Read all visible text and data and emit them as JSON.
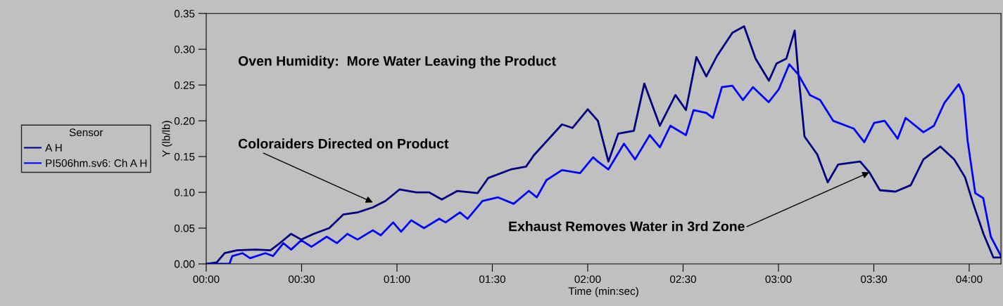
{
  "chart_data": {
    "type": "line",
    "xlabel": "Time (min:sec)",
    "ylabel": "Y (lb/lb)",
    "legend_title": "Sensor",
    "legend": "left",
    "grid": false,
    "marker": "none",
    "line_style": "solid",
    "annotations": [
      "Oven Humidity:  More Water Leaving the Product",
      {
        "text": "Coloraiders Directed on Product",
        "x": 52.4,
        "y": 0.086
      },
      {
        "text": "Exhaust Removes Water in 3rd Zone",
        "x": 208.6,
        "y": 0.128
      }
    ],
    "xlim": [
      0,
      250
    ],
    "xticks": [
      {
        "value": 0,
        "label": "00:00"
      },
      {
        "value": 30,
        "label": "00:30"
      },
      {
        "value": 60,
        "label": "01:00"
      },
      {
        "value": 90,
        "label": "01:30"
      },
      {
        "value": 120,
        "label": "02:00"
      },
      {
        "value": 150,
        "label": "02:30"
      },
      {
        "value": 180,
        "label": "03:00"
      },
      {
        "value": 210,
        "label": "03:30"
      },
      {
        "value": 240,
        "label": "04:00"
      }
    ],
    "ylim": [
      0,
      0.35
    ],
    "yticks": [
      {
        "value": 0,
        "label": "0.00"
      },
      {
        "value": 0.05,
        "label": "0.05"
      },
      {
        "value": 0.1,
        "label": "0.10"
      },
      {
        "value": 0.15,
        "label": "0.15"
      },
      {
        "value": 0.2,
        "label": "0.20"
      },
      {
        "value": 0.25,
        "label": "0.25"
      },
      {
        "value": 0.3,
        "label": "0.30"
      },
      {
        "value": 0.35,
        "label": "0.35"
      }
    ],
    "series": [
      {
        "name": "A H",
        "color": "#000080",
        "x": [
          0,
          3.3,
          5.8,
          9.7,
          15.5,
          20.2,
          22.6,
          26.7,
          29.9,
          33.8,
          38.7,
          43.1,
          47.6,
          52.4,
          56.4,
          60.8,
          66.1,
          70.1,
          74.1,
          79,
          85.4,
          88.7,
          95.8,
          100.6,
          103.1,
          111.9,
          115.2,
          120,
          123.2,
          126.5,
          129.6,
          134.5,
          137.8,
          142.7,
          147.6,
          150.9,
          154.2,
          157.3,
          160.6,
          165.5,
          169.2,
          172.8,
          177,
          179.4,
          182.5,
          185.1,
          186.2,
          188.2,
          192.2,
          195.5,
          198.8,
          205.7,
          208.6,
          211.9,
          216.8,
          221.6,
          225.6,
          230.9,
          235.3,
          238.7,
          241.2,
          244.5,
          247.6,
          250
        ],
        "values": [
          0,
          0.002,
          0.015,
          0.019,
          0.02,
          0.019,
          0.027,
          0.042,
          0.034,
          0.042,
          0.05,
          0.069,
          0.072,
          0.079,
          0.088,
          0.104,
          0.1,
          0.1,
          0.09,
          0.102,
          0.099,
          0.12,
          0.132,
          0.136,
          0.152,
          0.195,
          0.19,
          0.216,
          0.2,
          0.143,
          0.182,
          0.186,
          0.252,
          0.193,
          0.236,
          0.215,
          0.289,
          0.262,
          0.29,
          0.323,
          0.332,
          0.287,
          0.256,
          0.28,
          0.287,
          0.326,
          0.269,
          0.178,
          0.153,
          0.114,
          0.139,
          0.143,
          0.128,
          0.103,
          0.101,
          0.11,
          0.146,
          0.164,
          0.146,
          0.121,
          0.085,
          0.042,
          0.009,
          0.009
        ]
      },
      {
        "name": "PI506hm.sv6: Ch A H",
        "color": "#0000ff",
        "x": [
          0,
          7.3,
          8.2,
          11.4,
          13.8,
          18.6,
          21,
          24.3,
          26.7,
          29.9,
          33.1,
          37.9,
          41.1,
          44.4,
          47.6,
          52.4,
          54.9,
          58.8,
          61.3,
          64.5,
          68.5,
          73.3,
          75.3,
          79.8,
          82.2,
          86.9,
          91.8,
          96.7,
          101.5,
          104,
          107,
          111.9,
          117.6,
          121.7,
          123.2,
          126.5,
          131.4,
          134.9,
          139.5,
          142.7,
          146,
          150.9,
          153.3,
          157.3,
          159.4,
          162.2,
          165.5,
          168.8,
          172,
          176.9,
          180.1,
          183.4,
          186.2,
          189.9,
          193.1,
          197.2,
          203.7,
          207,
          210.1,
          213.4,
          217.5,
          220,
          225.6,
          228.9,
          232.2,
          236.7,
          238.2,
          239.5,
          241.9,
          244.4,
          246.8,
          250
        ],
        "values": [
          0,
          0,
          0.011,
          0.015,
          0.008,
          0.015,
          0.011,
          0.029,
          0.02,
          0.033,
          0.024,
          0.038,
          0.029,
          0.042,
          0.034,
          0.047,
          0.04,
          0.058,
          0.045,
          0.061,
          0.05,
          0.063,
          0.058,
          0.072,
          0.063,
          0.088,
          0.093,
          0.084,
          0.102,
          0.093,
          0.117,
          0.131,
          0.127,
          0.149,
          0.143,
          0.132,
          0.168,
          0.146,
          0.18,
          0.163,
          0.193,
          0.18,
          0.215,
          0.211,
          0.204,
          0.247,
          0.249,
          0.229,
          0.247,
          0.226,
          0.244,
          0.279,
          0.265,
          0.236,
          0.229,
          0.2,
          0.189,
          0.17,
          0.197,
          0.2,
          0.175,
          0.204,
          0.184,
          0.193,
          0.225,
          0.251,
          0.236,
          0.172,
          0.099,
          0.092,
          0.038,
          0.011
        ]
      }
    ]
  }
}
